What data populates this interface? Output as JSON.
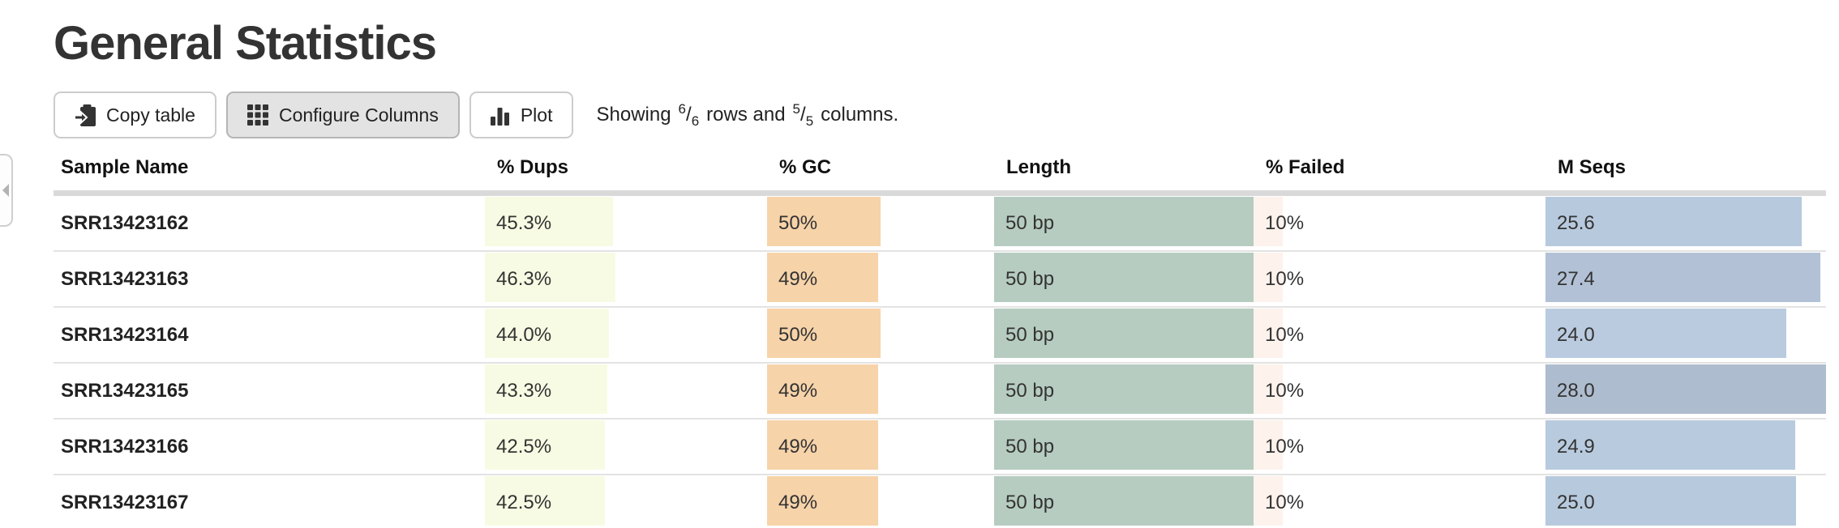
{
  "window": {
    "title": "General Statistics"
  },
  "toolbar": {
    "copy_button": {
      "label": "Copy table",
      "icon": "clipboard-icon"
    },
    "configure_button": {
      "label": "Configure Columns",
      "icon": "grid-icon",
      "state": "active"
    },
    "plot_button": {
      "label": "Plot",
      "icon": "bar-chart-icon"
    },
    "showing": {
      "prefix": "Showing",
      "rows_shown": "6",
      "rows_total": "6",
      "slash": "/",
      "rows_word": "rows and",
      "cols_shown": "5",
      "cols_total": "5",
      "cols_word": "columns."
    }
  },
  "table": {
    "columns": [
      "Sample Name",
      "% Dups",
      "% GC",
      "Length",
      "% Failed",
      "M Seqs"
    ],
    "rows": [
      {
        "sample": "SRR13423162",
        "dups": {
          "label": "45.3%",
          "bar_pct": 45.3
        },
        "gc": {
          "label": "50%",
          "bar_pct": 50
        },
        "length": {
          "label": "50 bp",
          "bar_pct": 100
        },
        "failed": {
          "label": "10%",
          "bar_pct": 10
        },
        "mseqs": {
          "label": "25.6",
          "bar_pct": 91.4,
          "bar_color": "#b7c9dd"
        }
      },
      {
        "sample": "SRR13423163",
        "dups": {
          "label": "46.3%",
          "bar_pct": 46.3
        },
        "gc": {
          "label": "49%",
          "bar_pct": 49
        },
        "length": {
          "label": "50 bp",
          "bar_pct": 100
        },
        "failed": {
          "label": "10%",
          "bar_pct": 10
        },
        "mseqs": {
          "label": "27.4",
          "bar_pct": 97.9,
          "bar_color": "#b2c1d5"
        }
      },
      {
        "sample": "SRR13423164",
        "dups": {
          "label": "44.0%",
          "bar_pct": 44.0
        },
        "gc": {
          "label": "50%",
          "bar_pct": 50
        },
        "length": {
          "label": "50 bp",
          "bar_pct": 100
        },
        "failed": {
          "label": "10%",
          "bar_pct": 10
        },
        "mseqs": {
          "label": "24.0",
          "bar_pct": 85.7,
          "bar_color": "#bacbe0"
        }
      },
      {
        "sample": "SRR13423165",
        "dups": {
          "label": "43.3%",
          "bar_pct": 43.3
        },
        "gc": {
          "label": "49%",
          "bar_pct": 49
        },
        "length": {
          "label": "50 bp",
          "bar_pct": 100
        },
        "failed": {
          "label": "10%",
          "bar_pct": 10
        },
        "mseqs": {
          "label": "28.0",
          "bar_pct": 100,
          "bar_color": "#aebccf"
        }
      },
      {
        "sample": "SRR13423166",
        "dups": {
          "label": "42.5%",
          "bar_pct": 42.5
        },
        "gc": {
          "label": "49%",
          "bar_pct": 49
        },
        "length": {
          "label": "50 bp",
          "bar_pct": 100
        },
        "failed": {
          "label": "10%",
          "bar_pct": 10
        },
        "mseqs": {
          "label": "24.9",
          "bar_pct": 88.9,
          "bar_color": "#b8cade"
        }
      },
      {
        "sample": "SRR13423167",
        "dups": {
          "label": "42.5%",
          "bar_pct": 42.5
        },
        "gc": {
          "label": "49%",
          "bar_pct": 49
        },
        "length": {
          "label": "50 bp",
          "bar_pct": 100
        },
        "failed": {
          "label": "10%",
          "bar_pct": 10
        },
        "mseqs": {
          "label": "25.0",
          "bar_pct": 89.3,
          "bar_color": "#b7c9dd"
        }
      }
    ]
  },
  "colors": {
    "dups_bar": "#f8fbe3",
    "gc_bar": "#f7d3a9",
    "length_bar": "#b6ccc0",
    "failed_bar": "#fdf2ec",
    "header_border": "#d9d9d9",
    "row_border": "#e3e3e3"
  }
}
